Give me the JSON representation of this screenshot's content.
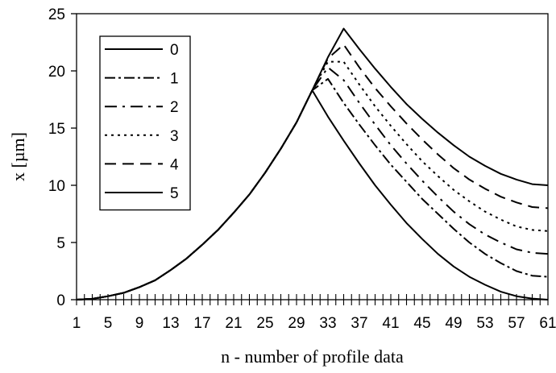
{
  "chart_data": {
    "type": "line",
    "title": "",
    "xlabel": "n - number of profile data",
    "ylabel": "x [µm]",
    "xlim": [
      1,
      61
    ],
    "ylim": [
      0,
      25
    ],
    "x_tick_labels": [
      "1",
      "5",
      "9",
      "13",
      "17",
      "21",
      "25",
      "29",
      "33",
      "37",
      "41",
      "45",
      "49",
      "53",
      "57",
      "61"
    ],
    "y_tick_labels": [
      "0",
      "5",
      "10",
      "15",
      "20",
      "25"
    ],
    "legend_position": "top-left",
    "grid": false,
    "x": [
      1,
      3,
      5,
      7,
      9,
      11,
      13,
      15,
      17,
      19,
      21,
      23,
      25,
      27,
      29,
      31,
      33,
      35,
      37,
      39,
      41,
      43,
      45,
      47,
      49,
      51,
      53,
      55,
      57,
      59,
      61
    ],
    "series": [
      {
        "name": "0",
        "dash": "solid",
        "values": [
          0,
          0.08,
          0.3,
          0.6,
          1.1,
          1.7,
          2.6,
          3.6,
          4.8,
          6.1,
          7.6,
          9.2,
          11.1,
          13.2,
          15.5,
          18.3,
          16.0,
          13.9,
          11.9,
          10.0,
          8.3,
          6.7,
          5.3,
          4.0,
          2.9,
          2.0,
          1.3,
          0.7,
          0.3,
          0.1,
          0
        ]
      },
      {
        "name": "1",
        "dash": "dash-dot",
        "values": [
          0,
          0.08,
          0.3,
          0.6,
          1.1,
          1.7,
          2.6,
          3.6,
          4.8,
          6.1,
          7.6,
          9.2,
          11.1,
          13.2,
          15.5,
          18.3,
          19.3,
          17.2,
          15.3,
          13.5,
          11.8,
          10.3,
          8.8,
          7.5,
          6.2,
          5.0,
          4.0,
          3.2,
          2.5,
          2.1,
          2.0
        ]
      },
      {
        "name": "2",
        "dash": "long-dash-dot",
        "values": [
          0,
          0.08,
          0.3,
          0.6,
          1.1,
          1.7,
          2.6,
          3.6,
          4.8,
          6.1,
          7.6,
          9.2,
          11.1,
          13.2,
          15.5,
          18.3,
          20.3,
          19.2,
          17.2,
          15.3,
          13.5,
          11.9,
          10.4,
          9.0,
          7.7,
          6.6,
          5.7,
          5.0,
          4.4,
          4.1,
          4.0
        ]
      },
      {
        "name": "3",
        "dash": "dotted",
        "values": [
          0,
          0.08,
          0.3,
          0.6,
          1.1,
          1.7,
          2.6,
          3.6,
          4.8,
          6.1,
          7.6,
          9.2,
          11.1,
          13.2,
          15.5,
          18.3,
          20.8,
          20.8,
          18.8,
          16.9,
          15.2,
          13.6,
          12.1,
          10.8,
          9.6,
          8.6,
          7.7,
          7.0,
          6.4,
          6.1,
          6.0
        ]
      },
      {
        "name": "4",
        "dash": "dashed",
        "values": [
          0,
          0.08,
          0.3,
          0.6,
          1.1,
          1.7,
          2.6,
          3.6,
          4.8,
          6.1,
          7.6,
          9.2,
          11.1,
          13.2,
          15.5,
          18.3,
          21.1,
          22.3,
          20.3,
          18.5,
          16.9,
          15.4,
          14.0,
          12.7,
          11.5,
          10.5,
          9.7,
          9.0,
          8.5,
          8.1,
          8.0
        ]
      },
      {
        "name": "5",
        "dash": "solid",
        "values": [
          0,
          0.08,
          0.3,
          0.6,
          1.1,
          1.7,
          2.6,
          3.6,
          4.8,
          6.1,
          7.6,
          9.2,
          11.1,
          13.2,
          15.5,
          18.3,
          21.2,
          23.7,
          21.9,
          20.2,
          18.6,
          17.1,
          15.8,
          14.6,
          13.5,
          12.5,
          11.7,
          11.0,
          10.5,
          10.1,
          10.0
        ]
      }
    ]
  }
}
